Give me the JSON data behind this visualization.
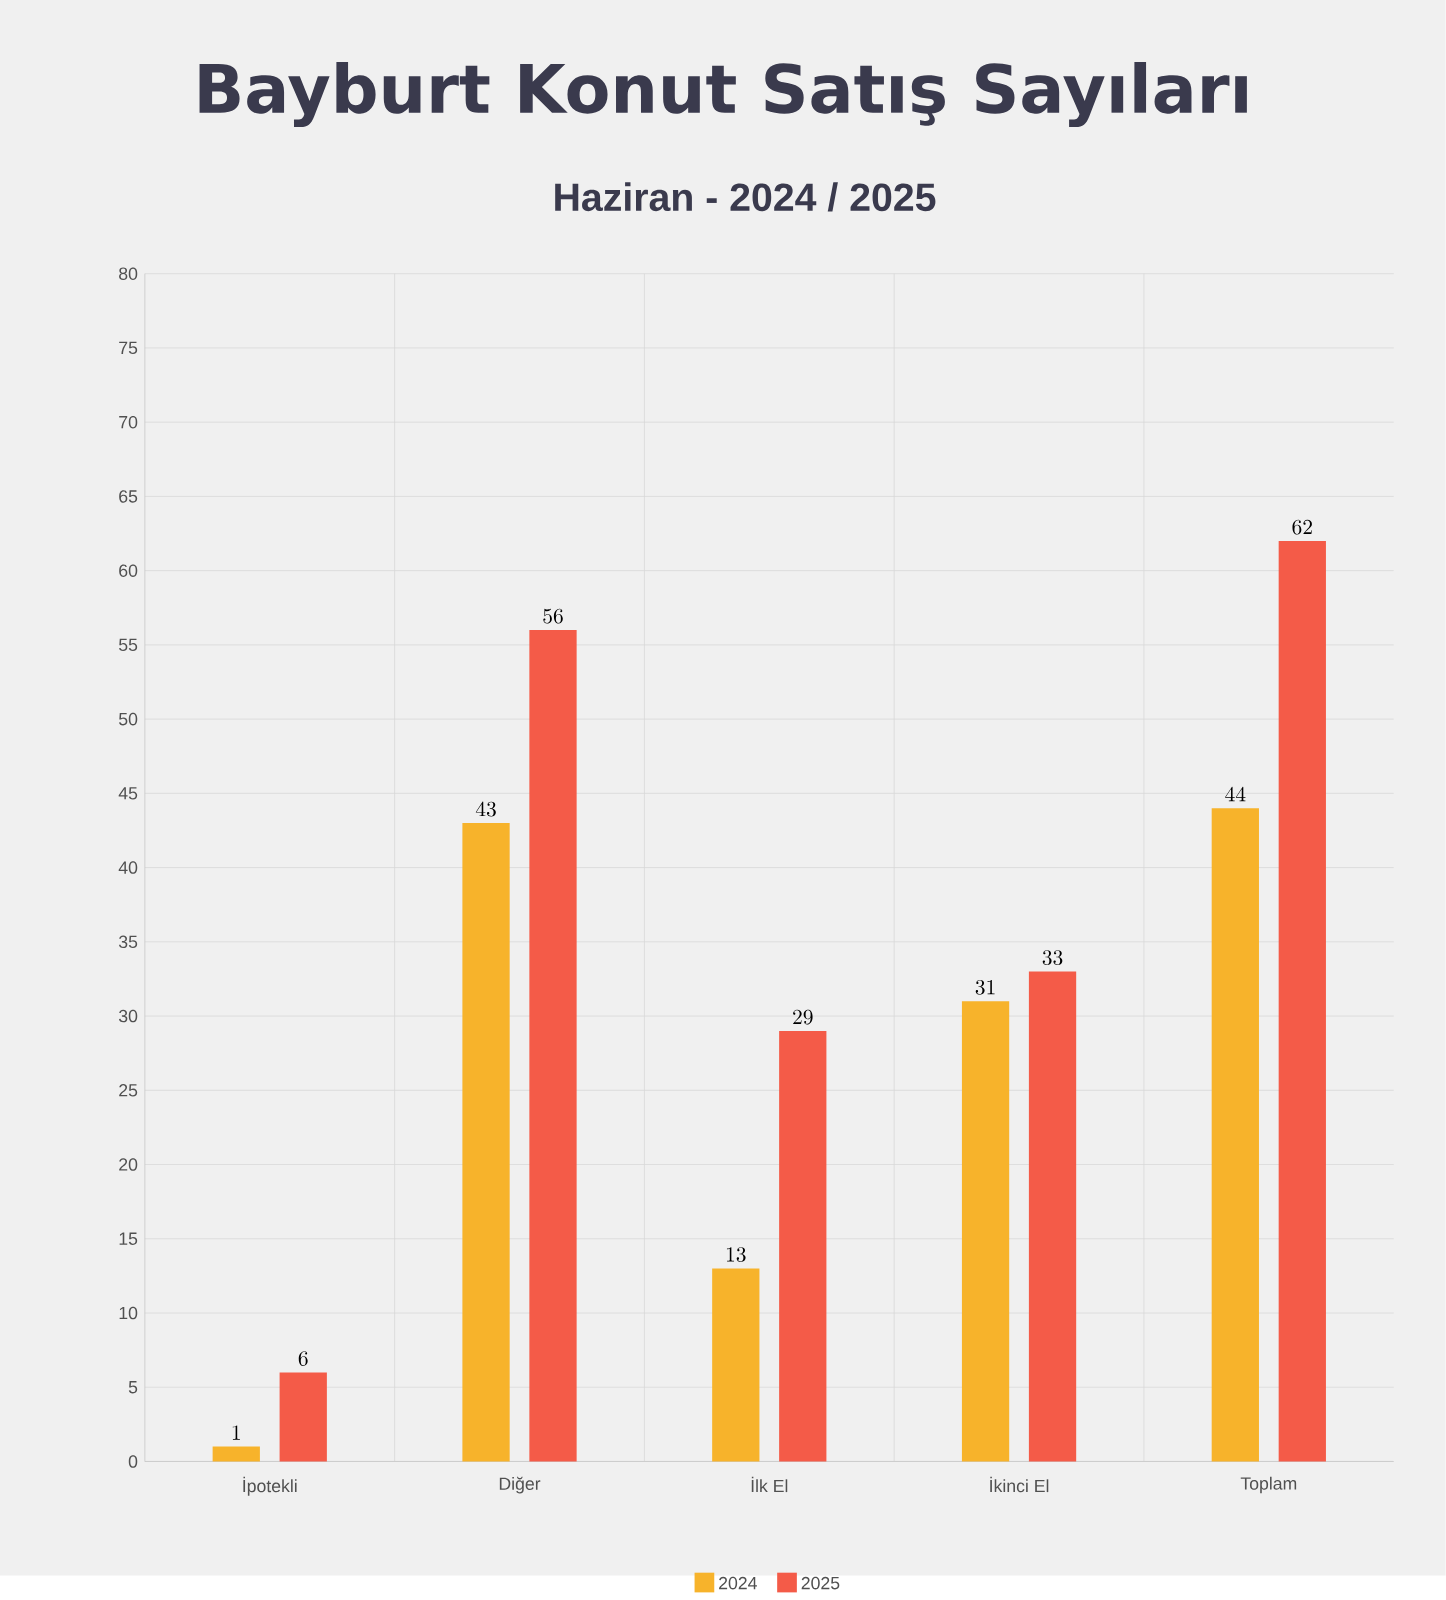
{
  "chart_data": {
    "type": "bar",
    "title": "Bayburt Konut Satış Sayıları",
    "subtitle": "Haziran - 2024 / 2025",
    "categories": [
      "İpotekli",
      "Diğer",
      "İlk El",
      "İkinci El",
      "Toplam"
    ],
    "series": [
      {
        "name": "2024",
        "color": "#f7b32b",
        "values": [
          1,
          43,
          13,
          31,
          44
        ]
      },
      {
        "name": "2025",
        "color": "#f45b48",
        "values": [
          6,
          56,
          29,
          33,
          62
        ]
      }
    ],
    "ylim": [
      0,
      80
    ],
    "yticks": [
      0,
      5,
      10,
      15,
      20,
      25,
      30,
      35,
      40,
      45,
      50,
      55,
      60,
      65,
      70,
      75,
      80
    ],
    "grid": true,
    "legend": "bottom",
    "data_labels": true
  }
}
